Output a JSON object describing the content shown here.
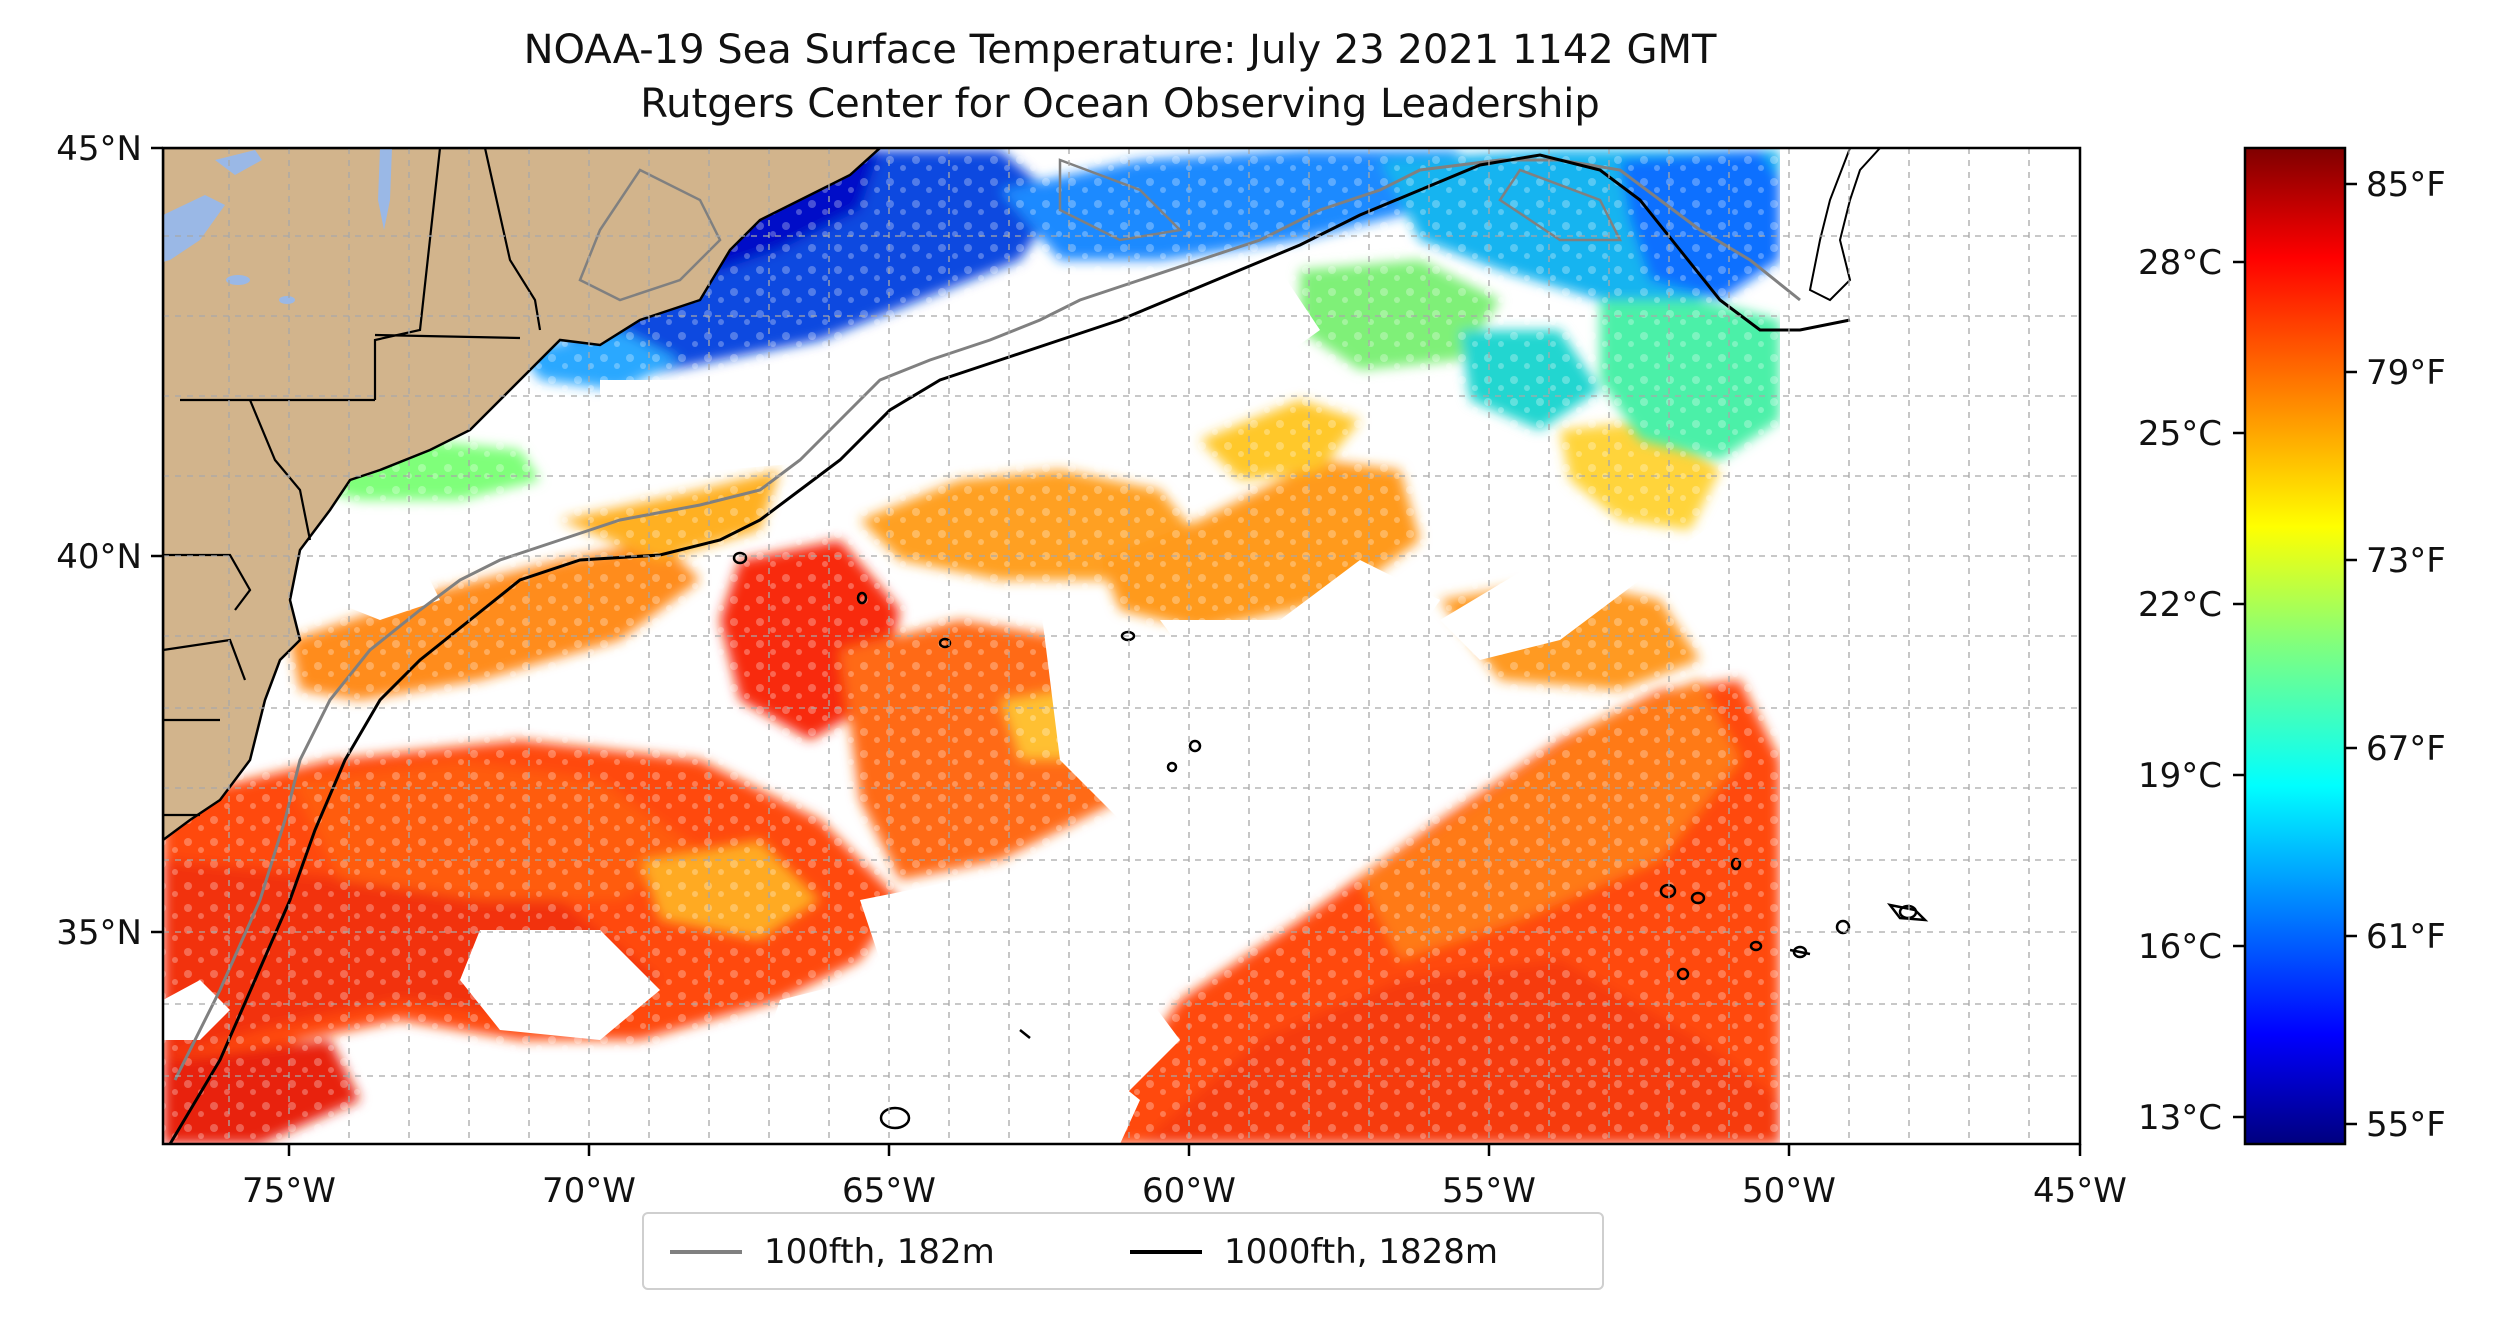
{
  "title": "NOAA-19 Sea Surface Temperature: July 23 2021 1142 GMT",
  "subtitle": "Rutgers Center for Ocean Observing Leadership",
  "map": {
    "lon_range": [
      -77,
      -45
    ],
    "lat_range": [
      32.5,
      45
    ],
    "x_ticks": [
      "75°W",
      "70°W",
      "65°W",
      "60°W",
      "55°W",
      "50°W",
      "45°W"
    ],
    "y_ticks": [
      "45°N",
      "40°N",
      "35°N"
    ],
    "gridlines": true,
    "land_color": "#d2b48c",
    "lake_color": "#9ab8e6"
  },
  "colorbar": {
    "celsius_labels": [
      "28°C",
      "25°C",
      "22°C",
      "19°C",
      "16°C",
      "13°C"
    ],
    "fahrenheit_labels": [
      "85°F",
      "79°F",
      "73°F",
      "67°F",
      "61°F",
      "55°F"
    ],
    "colormap": "jet",
    "range_f": [
      54.5,
      86.5
    ]
  },
  "legend": [
    {
      "label": "100fth, 182m",
      "color": "#808080"
    },
    {
      "label": "1000fth, 1828m",
      "color": "#000000"
    }
  ]
}
